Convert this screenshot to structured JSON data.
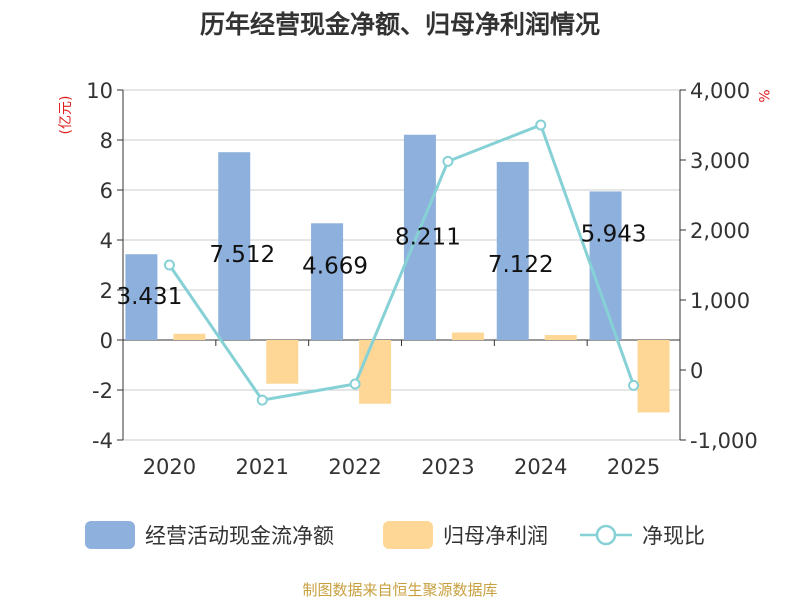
{
  "chart_data": {
    "type": "bar",
    "title": "历年经营现金净额、归母净利润情况",
    "categories": [
      "2020",
      "2021",
      "2022",
      "2023",
      "2024",
      "2025"
    ],
    "series": [
      {
        "name": "经营活动现金流净额",
        "type": "bar",
        "axis": "left",
        "color": "#8eb0dc",
        "values": [
          3.431,
          7.512,
          4.669,
          8.211,
          7.122,
          5.943
        ]
      },
      {
        "name": "归母净利润",
        "type": "bar",
        "axis": "left",
        "color": "#fed797",
        "values": [
          0.25,
          -1.75,
          -2.55,
          0.3,
          0.2,
          -2.9
        ]
      },
      {
        "name": "净现比",
        "type": "line",
        "axis": "right",
        "color": "#86d1d6",
        "values": [
          1500,
          -430,
          -200,
          2980,
          3500,
          -220
        ]
      }
    ],
    "data_labels": [
      "3.431",
      "7.512",
      "4.669",
      "8.211",
      "7.122",
      "5.943"
    ],
    "left_axis": {
      "label": "(亿元)",
      "ticks": [
        "10",
        "8",
        "6",
        "4",
        "2",
        "0",
        "-2",
        "-4"
      ],
      "ylim": [
        -4,
        10
      ]
    },
    "right_axis": {
      "label": "%",
      "ticks": [
        "4,000",
        "3,000",
        "2,000",
        "1,000",
        "0",
        "-1,000"
      ],
      "ylim": [
        -1000,
        4000
      ]
    },
    "grid": true,
    "legend_position": "bottom",
    "footer": "制图数据来自恒生聚源数据库",
    "colors": {
      "title": "#333333",
      "axis_label": "#e02020",
      "footer": "#c8a040",
      "grid": "#cccccc",
      "axis": "#333333"
    }
  }
}
